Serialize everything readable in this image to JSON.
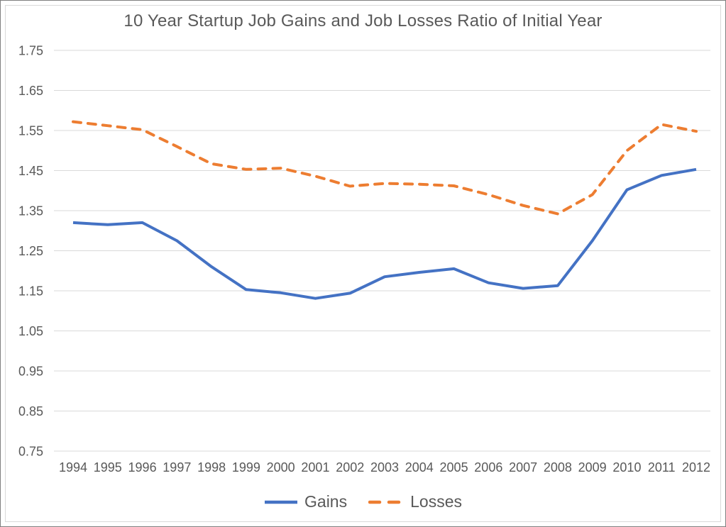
{
  "chart_data": {
    "type": "line",
    "title": "10 Year Startup Job Gains and Job Losses Ratio of Initial Year",
    "categories": [
      "1994",
      "1995",
      "1996",
      "1997",
      "1998",
      "1999",
      "2000",
      "2001",
      "2002",
      "2003",
      "2004",
      "2005",
      "2006",
      "2007",
      "2008",
      "2009",
      "2010",
      "2011",
      "2012"
    ],
    "series": [
      {
        "name": "Gains",
        "style": "solid",
        "color": "#4472C4",
        "values": [
          1.32,
          1.315,
          1.32,
          1.275,
          1.21,
          1.153,
          1.145,
          1.131,
          1.144,
          1.185,
          1.196,
          1.205,
          1.17,
          1.156,
          1.163,
          1.275,
          1.402,
          1.438,
          1.453
        ]
      },
      {
        "name": "Losses",
        "style": "dashed",
        "color": "#ED7D31",
        "values": [
          1.572,
          1.562,
          1.552,
          1.51,
          1.467,
          1.453,
          1.456,
          1.436,
          1.411,
          1.418,
          1.416,
          1.412,
          1.39,
          1.363,
          1.342,
          1.39,
          1.5,
          1.565,
          1.548
        ]
      }
    ],
    "xlabel": "",
    "ylabel": "",
    "ylim": [
      0.75,
      1.75
    ],
    "y_ticks": [
      "1.75",
      "1.65",
      "1.55",
      "1.45",
      "1.35",
      "1.25",
      "1.15",
      "1.05",
      "0.95",
      "0.85",
      "0.75"
    ],
    "grid": "horizontal-only",
    "gridline_color": "#d9d9d9",
    "legend_position": "bottom"
  }
}
